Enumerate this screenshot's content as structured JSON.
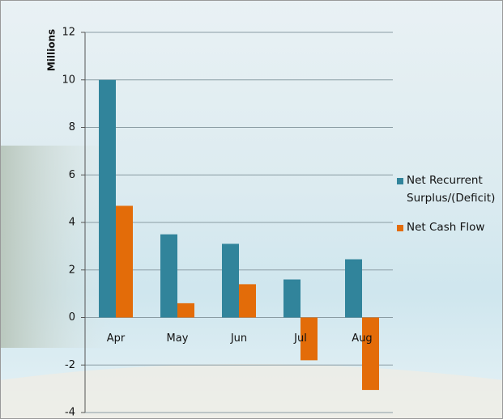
{
  "chart_data": {
    "type": "bar",
    "y_label": "Millions",
    "categories": [
      "Apr",
      "May",
      "Jun",
      "Jul",
      "Aug"
    ],
    "series": [
      {
        "name": "Net Recurrent Surplus/(Deficit)",
        "color": "#31849b",
        "values": [
          10,
          3.5,
          3.1,
          1.6,
          2.45
        ]
      },
      {
        "name": "Net Cash Flow",
        "color": "#e36c09",
        "values": [
          4.7,
          0.6,
          1.4,
          -1.8,
          -3.05
        ]
      }
    ],
    "ylim": [
      -4,
      12
    ],
    "yticks": [
      -4,
      -2,
      0,
      2,
      4,
      6,
      8,
      10,
      12
    ],
    "grid": true
  }
}
